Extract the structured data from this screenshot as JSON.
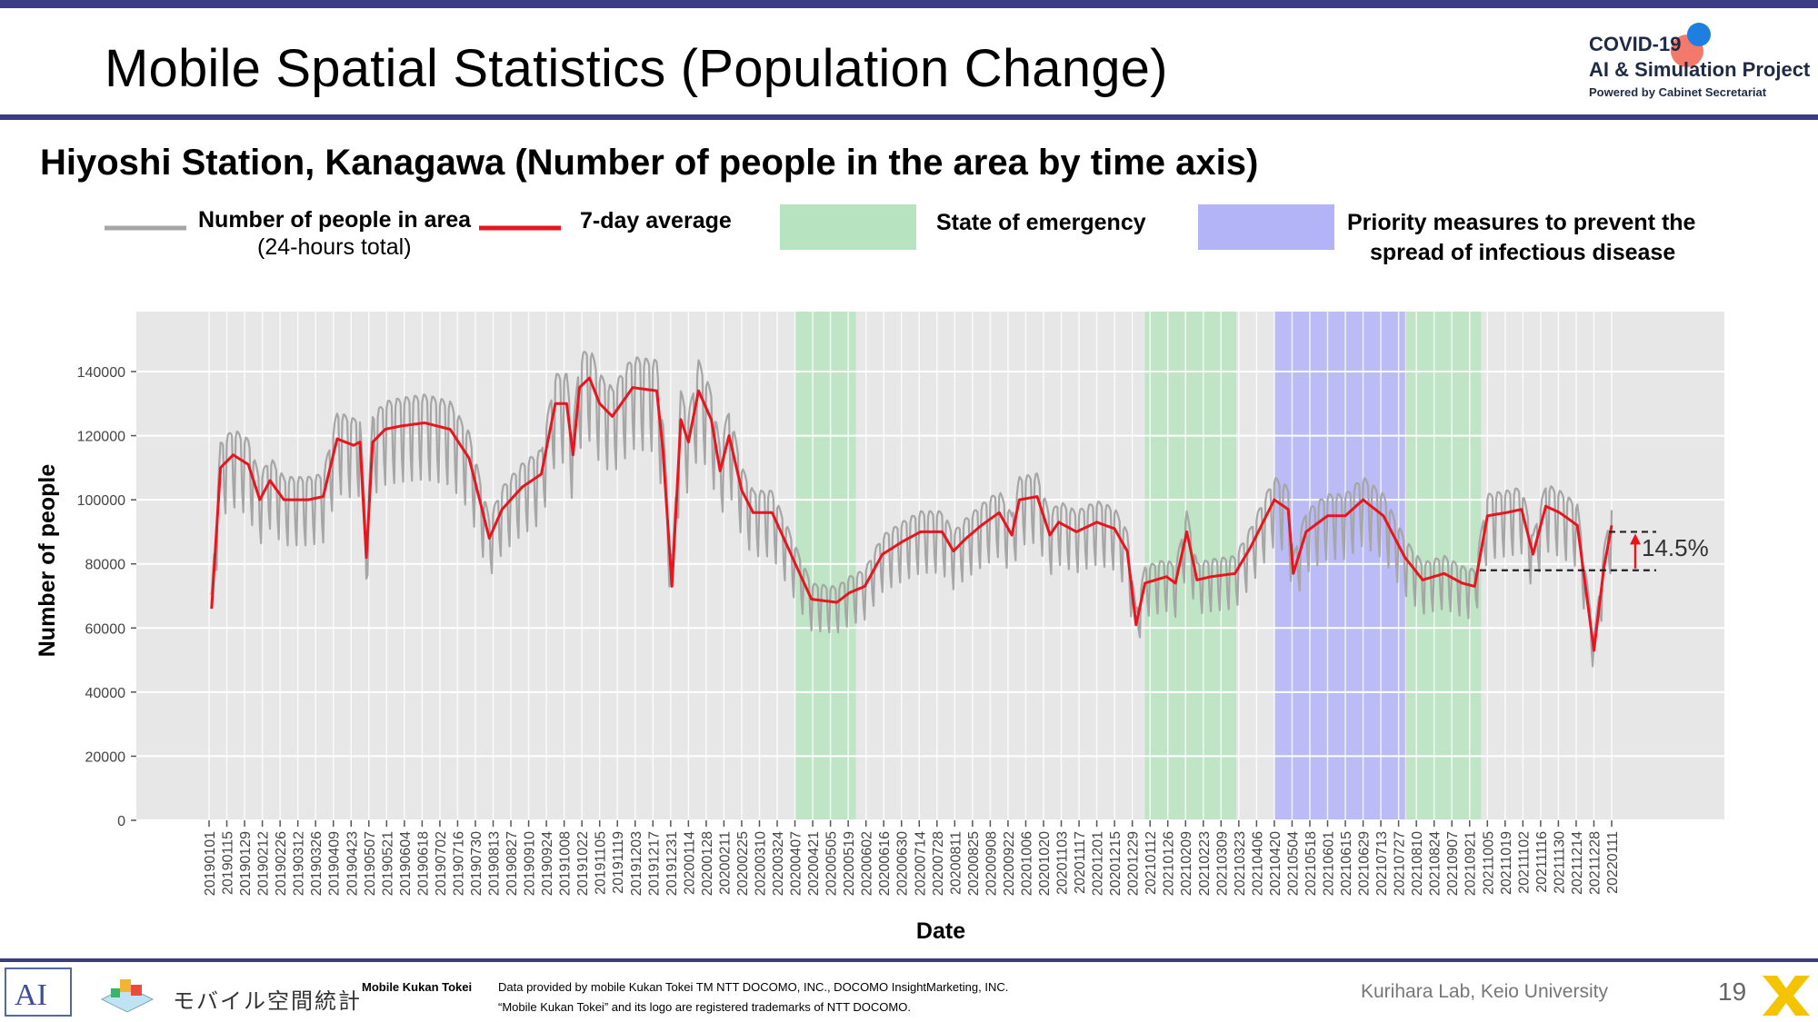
{
  "slide": {
    "title": "Mobile Spatial Statistics (Population Change)",
    "subtitle": "Hiyoshi Station, Kanagawa (Number of people in the area by time axis)",
    "page_number": "19",
    "credit": "Kurihara Lab, Keio University"
  },
  "logo": {
    "line1": "COVID-19",
    "line2": "AI & Simulation Project",
    "line3": "Powered by Cabinet Secretariat"
  },
  "legend": {
    "area_line1": "Number of people in area",
    "area_line2": "(24-hours total)",
    "avg": "7-day average",
    "emergency": "State of emergency",
    "priority_line1": "Priority measures to prevent the",
    "priority_line2": "spread of infectious disease"
  },
  "footer": {
    "brand_jp": "モバイル空間統計",
    "brand_en": "Mobile Kukan Tokei",
    "data_line1": "Data provided by mobile Kukan Tokei TM NTT DOCOMO, INC., DOCOMO InsightMarketing, INC.",
    "data_line2": "“Mobile Kukan Tokei” and its logo are registered trademarks of NTT DOCOMO."
  },
  "colors": {
    "raw_line": "#a6a6a6",
    "avg_line": "#e8141e",
    "emergency_fill": "#b7e3c0",
    "priority_fill": "#b3b3f7",
    "plot_bg": "#e7e7e7",
    "accent": "#3c3c84"
  },
  "chart_data": {
    "type": "line",
    "xlabel": "Date",
    "ylabel": "Number of people",
    "x_start": "20190101",
    "x_end": "20220111",
    "ylim": [
      0,
      150000
    ],
    "y_ticks": [
      0,
      20000,
      40000,
      60000,
      80000,
      100000,
      120000,
      140000
    ],
    "x_ticks": [
      "20190101",
      "20190115",
      "20190129",
      "20190212",
      "20190226",
      "20190312",
      "20190326",
      "20190409",
      "20190423",
      "20190507",
      "20190521",
      "20190604",
      "20190618",
      "20190702",
      "20190716",
      "20190730",
      "20190813",
      "20190827",
      "20190910",
      "20190924",
      "20191008",
      "20191022",
      "20191105",
      "20191119",
      "20191203",
      "20191217",
      "20191231",
      "20200114",
      "20200128",
      "20200211",
      "20200225",
      "20200310",
      "20200324",
      "20200407",
      "20200421",
      "20200505",
      "20200519",
      "20200602",
      "20200616",
      "20200630",
      "20200714",
      "20200728",
      "20200811",
      "20200825",
      "20200908",
      "20200922",
      "20201006",
      "20201020",
      "20201103",
      "20201117",
      "20201201",
      "20201215",
      "20201229",
      "20210112",
      "20210126",
      "20210209",
      "20210223",
      "20210309",
      "20210323",
      "20210406",
      "20210420",
      "20210504",
      "20210518",
      "20210601",
      "20210615",
      "20210629",
      "20210713",
      "20210727",
      "20210810",
      "20210824",
      "20210907",
      "20210921",
      "20211005",
      "20211019",
      "20211102",
      "20211116",
      "20211130",
      "20211214",
      "20211228",
      "20220111"
    ],
    "grid": true,
    "shaded_periods": [
      {
        "type": "emergency",
        "start": "20200407",
        "end": "20200525"
      },
      {
        "type": "emergency",
        "start": "20210108",
        "end": "20210321"
      },
      {
        "type": "priority",
        "start": "20210420",
        "end": "20210801"
      },
      {
        "type": "emergency",
        "start": "20210802",
        "end": "20210930"
      }
    ],
    "avg_series": {
      "name": "7-day average",
      "points": [
        [
          "20190103",
          66000
        ],
        [
          "20190110",
          110000
        ],
        [
          "20190120",
          114000
        ],
        [
          "20190201",
          111000
        ],
        [
          "20190210",
          100000
        ],
        [
          "20190218",
          106000
        ],
        [
          "20190301",
          100000
        ],
        [
          "20190320",
          100000
        ],
        [
          "20190401",
          101000
        ],
        [
          "20190412",
          119000
        ],
        [
          "20190425",
          117000
        ],
        [
          "20190430",
          118000
        ],
        [
          "20190505",
          82000
        ],
        [
          "20190510",
          118000
        ],
        [
          "20190520",
          122000
        ],
        [
          "20190601",
          123000
        ],
        [
          "20190620",
          124000
        ],
        [
          "20190710",
          122000
        ],
        [
          "20190725",
          113000
        ],
        [
          "20190810",
          88000
        ],
        [
          "20190820",
          97000
        ],
        [
          "20190905",
          104000
        ],
        [
          "20190920",
          108000
        ],
        [
          "20191001",
          130000
        ],
        [
          "20191010",
          130000
        ],
        [
          "20191015",
          114000
        ],
        [
          "20191020",
          135000
        ],
        [
          "20191028",
          138000
        ],
        [
          "20191105",
          130000
        ],
        [
          "20191115",
          126000
        ],
        [
          "20191201",
          135000
        ],
        [
          "20191220",
          134000
        ],
        [
          "20191225",
          115000
        ],
        [
          "20200101",
          73000
        ],
        [
          "20200108",
          125000
        ],
        [
          "20200114",
          118000
        ],
        [
          "20200122",
          134000
        ],
        [
          "20200201",
          125000
        ],
        [
          "20200208",
          109000
        ],
        [
          "20200215",
          120000
        ],
        [
          "20200225",
          103000
        ],
        [
          "20200305",
          96000
        ],
        [
          "20200320",
          96000
        ],
        [
          "20200405",
          82000
        ],
        [
          "20200420",
          69000
        ],
        [
          "20200510",
          68000
        ],
        [
          "20200520",
          71000
        ],
        [
          "20200601",
          73000
        ],
        [
          "20200615",
          83000
        ],
        [
          "20200701",
          87000
        ],
        [
          "20200715",
          90000
        ],
        [
          "20200801",
          90000
        ],
        [
          "20200810",
          84000
        ],
        [
          "20200820",
          88000
        ],
        [
          "20200901",
          92000
        ],
        [
          "20200915",
          96000
        ],
        [
          "20200925",
          89000
        ],
        [
          "20201001",
          100000
        ],
        [
          "20201015",
          101000
        ],
        [
          "20201025",
          89000
        ],
        [
          "20201101",
          93000
        ],
        [
          "20201115",
          90000
        ],
        [
          "20201201",
          93000
        ],
        [
          "20201215",
          91000
        ],
        [
          "20201225",
          84000
        ],
        [
          "20210101",
          61000
        ],
        [
          "20210108",
          74000
        ],
        [
          "20210125",
          76000
        ],
        [
          "20210201",
          74000
        ],
        [
          "20210210",
          90000
        ],
        [
          "20210218",
          75000
        ],
        [
          "20210301",
          76000
        ],
        [
          "20210320",
          77000
        ],
        [
          "20210401",
          85000
        ],
        [
          "20210420",
          100000
        ],
        [
          "20210501",
          97000
        ],
        [
          "20210505",
          77000
        ],
        [
          "20210515",
          90000
        ],
        [
          "20210601",
          95000
        ],
        [
          "20210615",
          95000
        ],
        [
          "20210629",
          100000
        ],
        [
          "20210715",
          95000
        ],
        [
          "20210801",
          82000
        ],
        [
          "20210815",
          75000
        ],
        [
          "20210901",
          77000
        ],
        [
          "20210915",
          74000
        ],
        [
          "20210925",
          73000
        ],
        [
          "20211005",
          95000
        ],
        [
          "20211020",
          96000
        ],
        [
          "20211101",
          97000
        ],
        [
          "20211110",
          83000
        ],
        [
          "20211120",
          98000
        ],
        [
          "20211201",
          96000
        ],
        [
          "20211215",
          92000
        ],
        [
          "20211228",
          53000
        ],
        [
          "20220105",
          79000
        ],
        [
          "20220111",
          92000
        ]
      ]
    },
    "raw_series": {
      "name": "Number of people in area (24-hours total)",
      "weekly_amplitude_approx": 9000
    },
    "annotation": {
      "label": "14.5%",
      "base_value": 78000,
      "top_value": 90000
    }
  }
}
